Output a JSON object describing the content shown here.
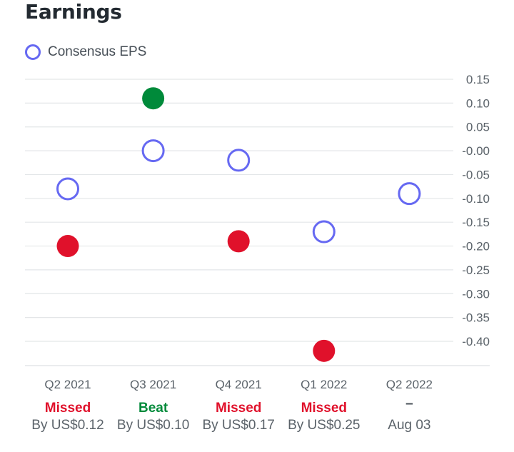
{
  "title": "Earnings",
  "legend": {
    "label": "Consensus EPS"
  },
  "colors": {
    "consensus": "#6669f2",
    "missed": "#e0112b",
    "beat": "#008a3a",
    "grid": "#e3e6e8",
    "text": "#5b636a"
  },
  "chart_data": {
    "type": "scatter",
    "categories": [
      "Q2 2021",
      "Q3 2021",
      "Q4 2021",
      "Q1 2022",
      "Q2 2022"
    ],
    "series": [
      {
        "name": "Consensus EPS",
        "values": [
          -0.08,
          0.0,
          -0.02,
          -0.17,
          -0.09
        ]
      },
      {
        "values": [
          -0.2,
          0.11,
          -0.19,
          -0.42,
          null
        ]
      }
    ],
    "ylim": [
      -0.45,
      0.15
    ],
    "y_ticks": [
      "0.15",
      "0.10",
      "0.05",
      "-0.00",
      "-0.05",
      "-0.10",
      "-0.15",
      "-0.20",
      "-0.25",
      "-0.30",
      "-0.35",
      "-0.40"
    ],
    "y_tick_values": [
      0.15,
      0.1,
      0.05,
      0.0,
      -0.05,
      -0.1,
      -0.15,
      -0.2,
      -0.25,
      -0.3,
      -0.35,
      -0.4
    ],
    "status": [
      "Missed",
      "Beat",
      "Missed",
      "Missed",
      "–"
    ],
    "detail": [
      "By US$0.12",
      "By US$0.10",
      "By US$0.17",
      "By US$0.25",
      "Aug 03"
    ],
    "grid": true,
    "legend_position": "top-left"
  }
}
